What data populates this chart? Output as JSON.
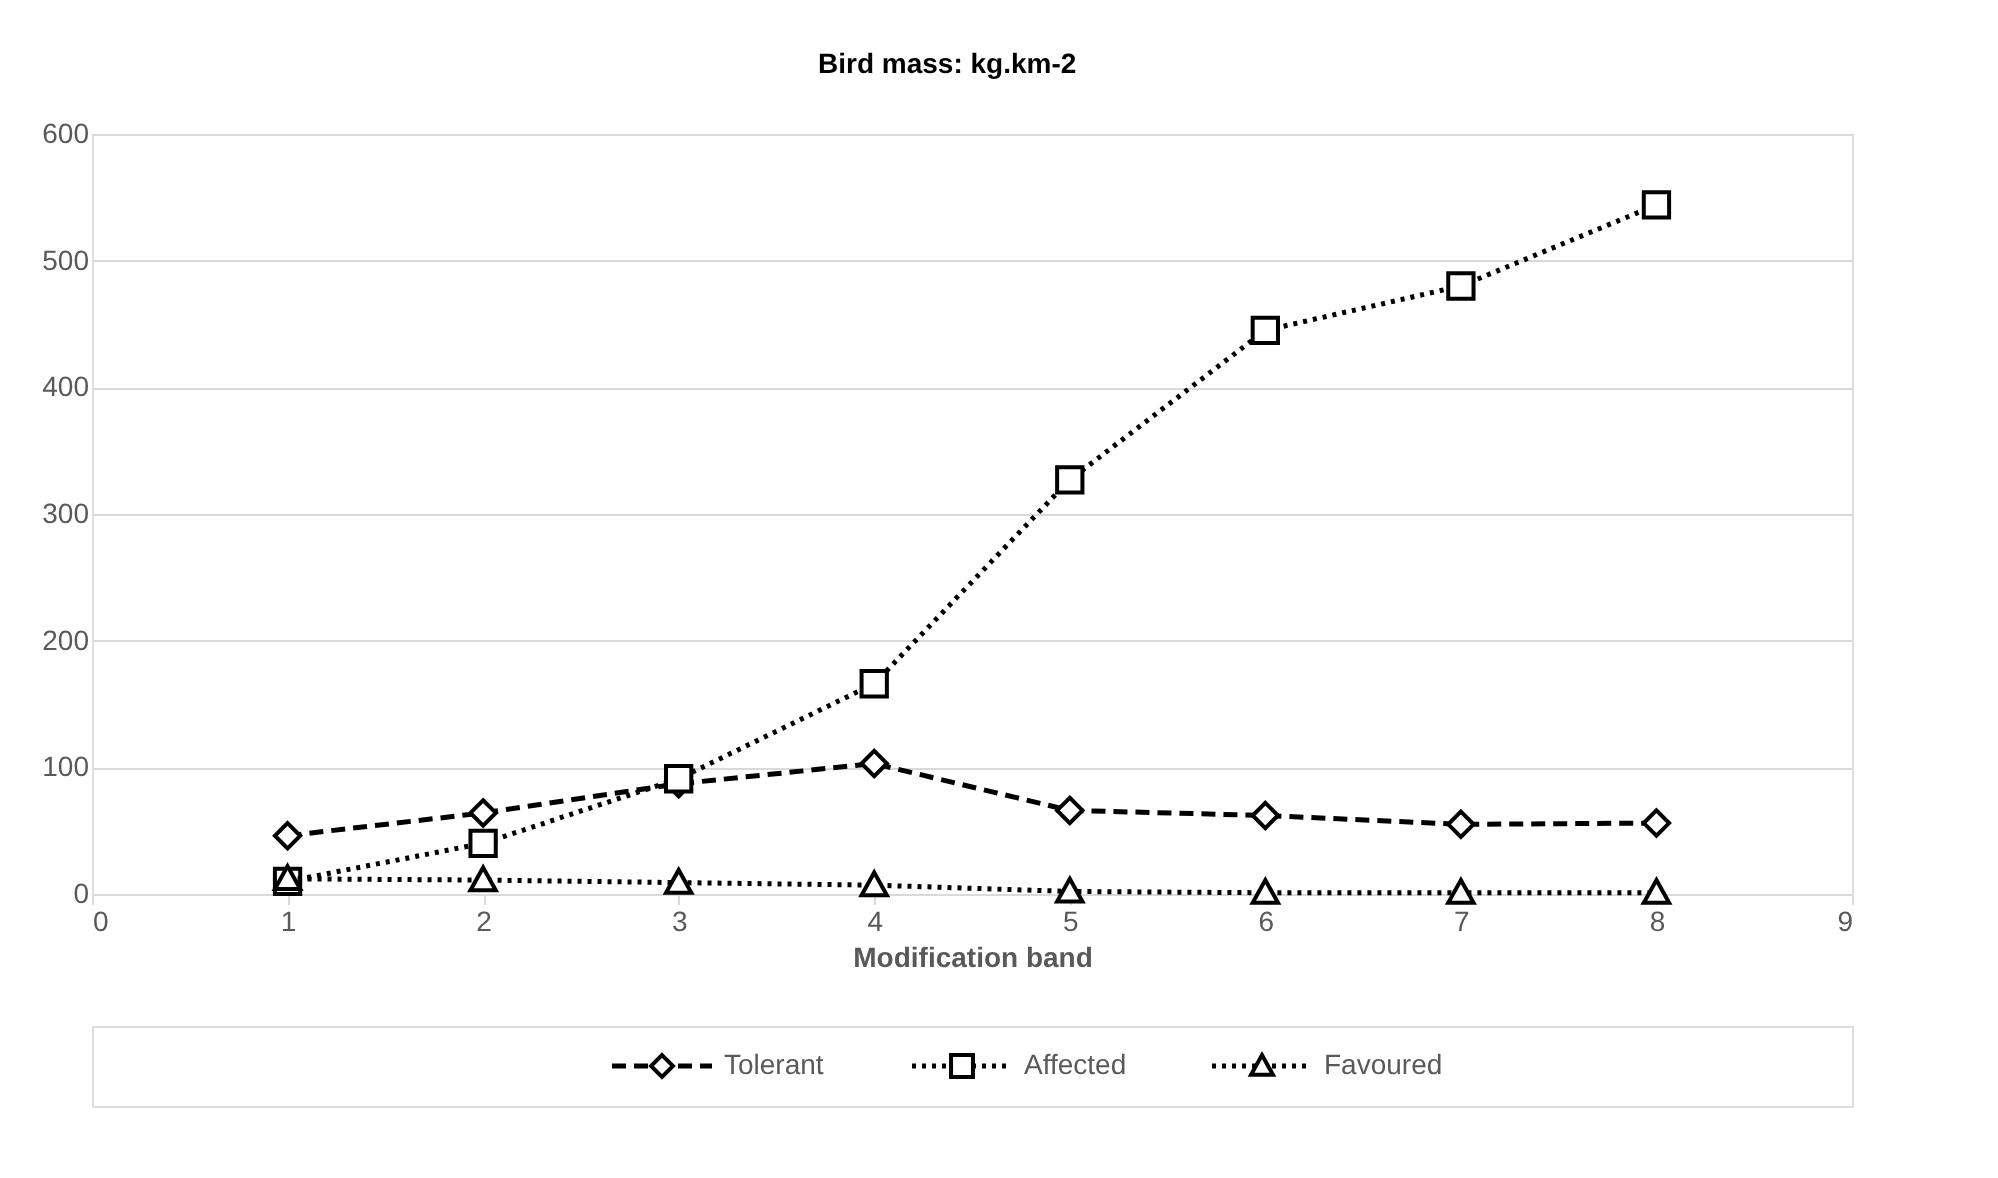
{
  "chart_data": {
    "type": "line",
    "title": "Bird mass: kg.km-2",
    "xlabel": "Modification band",
    "x": [
      1,
      2,
      3,
      4,
      5,
      6,
      7,
      8
    ],
    "series": [
      {
        "name": "Tolerant",
        "color": "#000000",
        "marker": "diamond",
        "line_style": "dashed",
        "values": [
          46,
          64,
          87,
          103,
          66,
          62,
          55,
          56
        ]
      },
      {
        "name": "Affected",
        "color": "#000000",
        "marker": "square",
        "line_style": "dotted",
        "values": [
          10,
          40,
          91,
          166,
          327,
          445,
          480,
          544
        ]
      },
      {
        "name": "Favoured",
        "color": "#000000",
        "marker": "triangle",
        "line_style": "dotted",
        "values": [
          12,
          11,
          9,
          7,
          2,
          1,
          1,
          1
        ]
      }
    ],
    "xlim": [
      0,
      9
    ],
    "xticks": [
      0,
      1,
      2,
      3,
      4,
      5,
      6,
      7,
      8,
      9
    ],
    "ylim": [
      0,
      600
    ],
    "yticks": [
      0,
      100,
      200,
      300,
      400,
      500,
      600
    ],
    "grid": "y",
    "legend": "bottom"
  }
}
